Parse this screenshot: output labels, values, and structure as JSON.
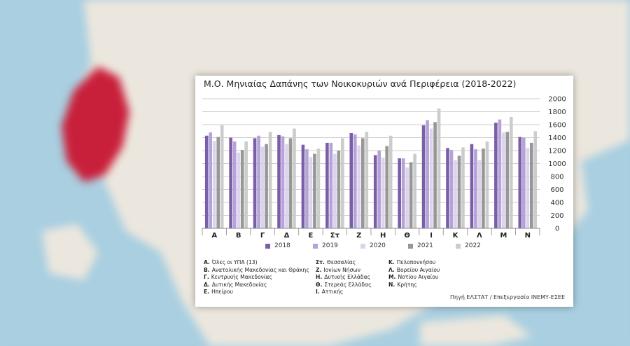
{
  "chart_data": {
    "type": "bar",
    "title": "Μ.Ο. Μηνιαίας Δαπάνης των Νοικοκυριών ανά Περιφέρεια (2018-2022)",
    "categories": [
      "Α",
      "Β",
      "Γ",
      "Δ",
      "Ε",
      "Στ",
      "Ζ",
      "Η",
      "Θ",
      "Ι",
      "Κ",
      "Λ",
      "Μ",
      "Ν"
    ],
    "series": [
      {
        "name": "2018",
        "values": [
          1430,
          1400,
          1390,
          1440,
          1290,
          1320,
          1470,
          1130,
          1080,
          1590,
          1240,
          1300,
          1630,
          1410
        ]
      },
      {
        "name": "2019",
        "values": [
          1480,
          1340,
          1430,
          1420,
          1220,
          1320,
          1450,
          1200,
          1080,
          1670,
          1210,
          1220,
          1680,
          1400
        ]
      },
      {
        "name": "2020",
        "values": [
          1350,
          1170,
          1260,
          1300,
          1100,
          1150,
          1280,
          1090,
          940,
          1540,
          1050,
          1050,
          1480,
          1240
        ]
      },
      {
        "name": "2021",
        "values": [
          1410,
          1210,
          1300,
          1390,
          1150,
          1200,
          1390,
          1270,
          1020,
          1640,
          1120,
          1230,
          1490,
          1320
        ]
      },
      {
        "name": "2022",
        "values": [
          1590,
          1340,
          1490,
          1540,
          1230,
          1390,
          1490,
          1430,
          1150,
          1850,
          1250,
          1340,
          1720,
          1500
        ]
      }
    ],
    "colors": [
      "#7b5ea8",
      "#b4a2d8",
      "#dcd4ec",
      "#979797",
      "#cccccc"
    ],
    "ylim": [
      0,
      2000
    ],
    "yticks": [
      0,
      200,
      400,
      600,
      800,
      1000,
      1200,
      1400,
      1600,
      1800,
      2000
    ],
    "grid": true,
    "yaxis_side": "right",
    "legend_position": "bottom"
  },
  "legend": {
    "items": [
      "2018",
      "2019",
      "2020",
      "2021",
      "2022"
    ]
  },
  "notes": {
    "col1": [
      {
        "key": "Α.",
        "text": "Όλες οι ΥΠΑ (13)"
      },
      {
        "key": "Β.",
        "text": "Ανατολικής Μακεδονίας και Θράκης"
      },
      {
        "key": "Γ.",
        "text": "Κεντρικής Μακεδονίας"
      },
      {
        "key": "Δ.",
        "text": "Δυτικής Μακεδονίας"
      },
      {
        "key": "Ε.",
        "text": "Ηπείρου"
      }
    ],
    "col2": [
      {
        "key": "Στ.",
        "text": "Θεσσαλίας"
      },
      {
        "key": "Ζ.",
        "text": "Ιονίων Νήσων"
      },
      {
        "key": "Η.",
        "text": "Δυτικής Ελλάδας"
      },
      {
        "key": "Θ.",
        "text": "Στερεάς Ελλάδας"
      },
      {
        "key": "Ι.",
        "text": "Αττικής"
      }
    ],
    "col3": [
      {
        "key": "Κ.",
        "text": "Πελοποννήσου"
      },
      {
        "key": "Λ.",
        "text": "Βορείου Αιγαίου"
      },
      {
        "key": "Μ.",
        "text": "Νοτίου Αιγαίου"
      },
      {
        "key": "Ν.",
        "text": "Κρήτης"
      }
    ]
  },
  "source": "Πηγή ΕΛΣΤΑΤ / Επεξεργασία ΙΝΕΜΥ-ΕΣΕΕ",
  "background": {
    "highlight_color": "#c8203a",
    "sea_color": "#a9cfe0",
    "land_color": "#ede8df"
  }
}
